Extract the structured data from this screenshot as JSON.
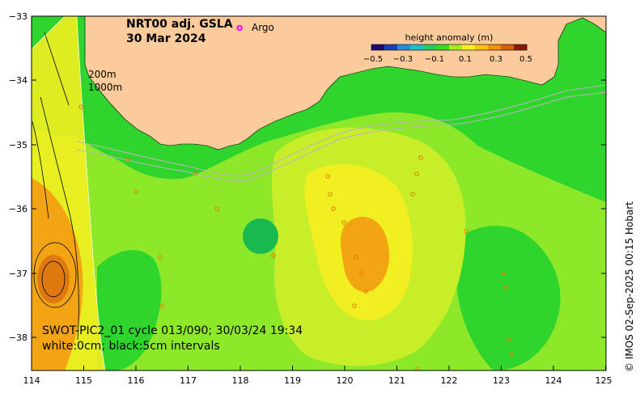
{
  "title": {
    "product": "NRT00 adj. GSLA",
    "date": "30 Mar 2024"
  },
  "legend": {
    "argo_symbol": "o",
    "argo_label": "Argo"
  },
  "depth_labels": [
    "200m",
    "1000m"
  ],
  "colorbar": {
    "title": "height anomaly (m)",
    "ticks": [
      "−0.5",
      "−0.3",
      "−0.1",
      "0.1",
      "0.3",
      "0.5"
    ],
    "colors": [
      "#1a0a7a",
      "#1b3fbf",
      "#1f8fe0",
      "#19c2c9",
      "#22cc66",
      "#33dd22",
      "#a8e824",
      "#f2f020",
      "#f7c214",
      "#f09010",
      "#d4600a",
      "#8b1a0a"
    ]
  },
  "axes": {
    "x_ticks": [
      "114",
      "115",
      "116",
      "117",
      "118",
      "119",
      "120",
      "121",
      "122",
      "123",
      "124",
      "125"
    ],
    "y_ticks": [
      "−33",
      "−34",
      "−35",
      "−36",
      "−37",
      "−38"
    ]
  },
  "info": {
    "line1": "SWOT-PIC2_01 cycle 013/090; 30/03/24 19:34",
    "line2": "white:0cm; black:5cm intervals"
  },
  "credit": "© IMOS 02-Sep-2025 00:15 Hobart",
  "colors": {
    "land": "#fbcb9b",
    "green": "#2fd42c",
    "light_green": "#8ee82a",
    "yellow_green": "#c8ee2a",
    "yellow": "#f1ef20",
    "orange": "#f3a412",
    "dark_orange": "#e07810",
    "argo": "#ff00ff"
  }
}
